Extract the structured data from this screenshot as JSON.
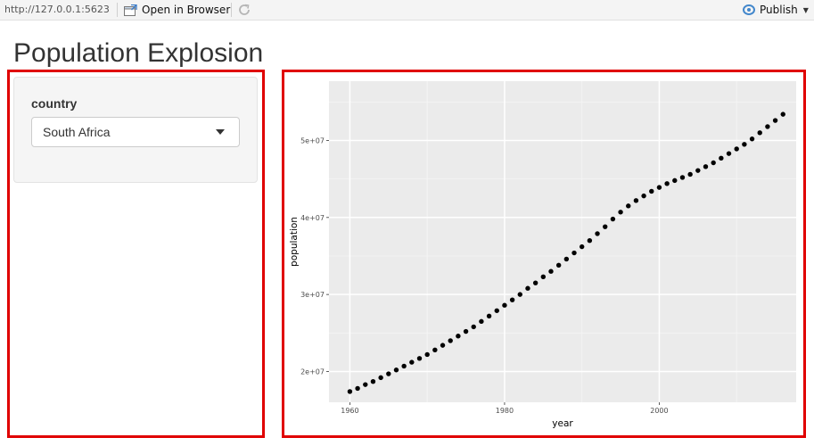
{
  "toolbar": {
    "url": "http://127.0.0.1:5623",
    "open_label": "Open in Browser",
    "publish_label": "Publish",
    "icons": {
      "open": "open-in-browser-icon",
      "refresh": "refresh-icon",
      "publish": "publish-icon",
      "caret": "chevron-down-icon"
    },
    "publish_color": "#4287cc"
  },
  "page": {
    "title": "Population Explosion"
  },
  "sidebar": {
    "control_label": "country",
    "selected": "South Africa"
  },
  "highlight_color": "#e00000",
  "chart_data": {
    "type": "scatter",
    "title": "",
    "xlabel": "year",
    "ylabel": "population",
    "xlim": [
      1957.3,
      2017.7
    ],
    "ylim": [
      16000000,
      57700000
    ],
    "xticks": [
      1960,
      1980,
      2000
    ],
    "xtick_labels": [
      "1960",
      "1980",
      "2000"
    ],
    "yticks": [
      20000000,
      30000000,
      40000000,
      50000000
    ],
    "ytick_labels": [
      "2e+07",
      "3e+07",
      "4e+07",
      "5e+07"
    ],
    "grid": true,
    "x": [
      1960,
      1961,
      1962,
      1963,
      1964,
      1965,
      1966,
      1967,
      1968,
      1969,
      1970,
      1971,
      1972,
      1973,
      1974,
      1975,
      1976,
      1977,
      1978,
      1979,
      1980,
      1981,
      1982,
      1983,
      1984,
      1985,
      1986,
      1987,
      1988,
      1989,
      1990,
      1991,
      1992,
      1993,
      1994,
      1995,
      1996,
      1997,
      1998,
      1999,
      2000,
      2001,
      2002,
      2003,
      2004,
      2005,
      2006,
      2007,
      2008,
      2009,
      2010,
      2011,
      2012,
      2013,
      2014,
      2015,
      2016
    ],
    "y": [
      17400000,
      17800000,
      18300000,
      18700000,
      19200000,
      19700000,
      20200000,
      20700000,
      21200000,
      21700000,
      22200000,
      22800000,
      23400000,
      24000000,
      24600000,
      25200000,
      25800000,
      26500000,
      27200000,
      27900000,
      28600000,
      29300000,
      30000000,
      30800000,
      31500000,
      32300000,
      33000000,
      33800000,
      34600000,
      35400000,
      36200000,
      37000000,
      37900000,
      38800000,
      39800000,
      40700000,
      41500000,
      42200000,
      42800000,
      43400000,
      43900000,
      44400000,
      44800000,
      45200000,
      45600000,
      46100000,
      46600000,
      47100000,
      47700000,
      48300000,
      48900000,
      49500000,
      50200000,
      51000000,
      51800000,
      52600000,
      53400000
    ]
  }
}
